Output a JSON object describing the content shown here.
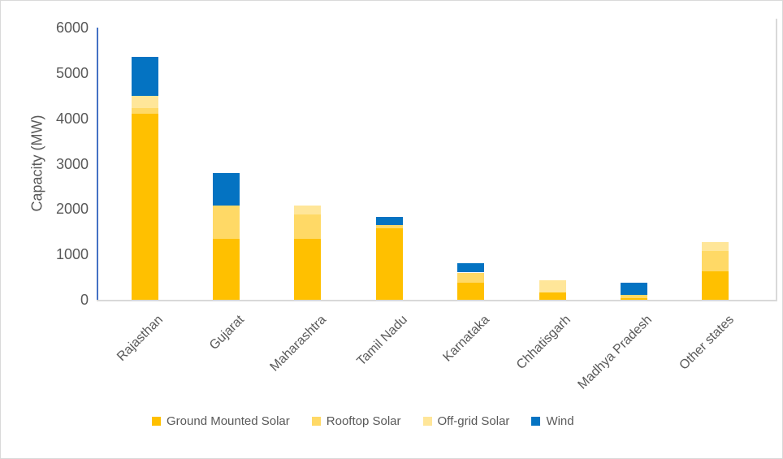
{
  "chart_data": {
    "type": "bar",
    "stacked": true,
    "title": "",
    "ylabel": "Capacity (MW)",
    "xlabel": "",
    "ylim": [
      0,
      6000
    ],
    "yticks": [
      0,
      1000,
      2000,
      3000,
      4000,
      5000,
      6000
    ],
    "grid": false,
    "legend_position": "bottom",
    "categories": [
      "Rajasthan",
      "Gujarat",
      "Maharashtra",
      "Tamil Nadu",
      "Karnataka",
      "Chhatisgarh",
      "Madhya Pradesh",
      "Other states"
    ],
    "series": [
      {
        "name": "Ground Mounted Solar",
        "color": "#FFC000",
        "values": [
          4100,
          1340,
          1340,
          1580,
          380,
          170,
          40,
          630
        ]
      },
      {
        "name": "Rooftop Solar",
        "color": "#FFD966",
        "values": [
          130,
          730,
          540,
          70,
          220,
          0,
          60,
          440
        ]
      },
      {
        "name": "Off-grid Solar",
        "color": "#FFE699",
        "values": [
          260,
          0,
          200,
          0,
          0,
          260,
          0,
          200
        ]
      },
      {
        "name": "Wind",
        "color": "#0473C2",
        "values": [
          860,
          730,
          0,
          180,
          200,
          0,
          280,
          0
        ]
      }
    ],
    "totals": [
      5350,
      2800,
      2080,
      1830,
      800,
      430,
      380,
      1270
    ]
  },
  "colors": {
    "axis_line": "#4472C4",
    "baseline": "#D9D9D9",
    "plot_border": "#D9D9D9",
    "text": "#595959",
    "background": "#FFFFFF"
  }
}
